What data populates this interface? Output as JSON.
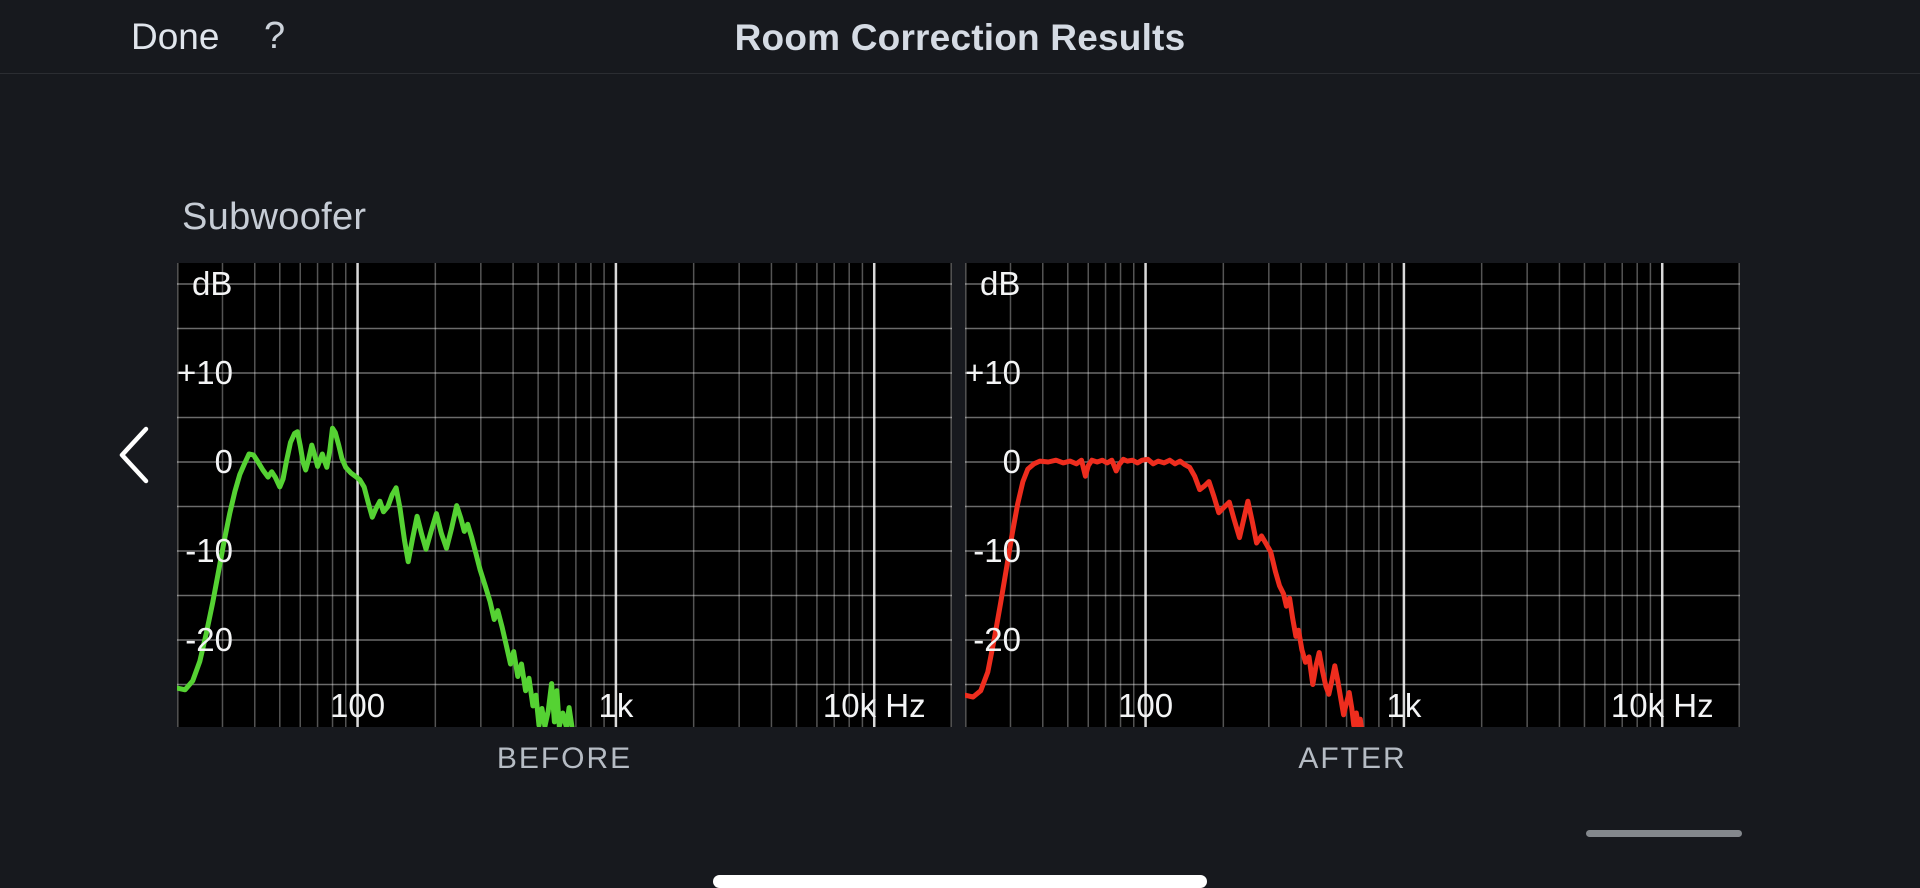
{
  "top_bar": {
    "done_label": "Done",
    "help_label": "?",
    "title": "Room Correction Results"
  },
  "section": {
    "speaker_label": "Subwoofer"
  },
  "colors": {
    "background": "#17191e",
    "chart_background": "#000000",
    "before_curve": "#55d233",
    "after_curve": "#ee2d1e",
    "grid_minor": "rgba(255,255,255,0.33)",
    "grid_major": "rgba(255,255,255,0.85)",
    "grid_horizontal": "rgba(255,255,255,0.42)"
  },
  "chart_data": [
    {
      "type": "line",
      "name": "Before room correction",
      "caption": "BEFORE",
      "color": "#55d233",
      "x_axis": {
        "unit": "Hz",
        "scale": "log",
        "min_hz": 20,
        "max_hz": 20000,
        "labels": [
          {
            "text": "100",
            "hz": 100
          },
          {
            "text": "1k",
            "hz": 1000
          },
          {
            "text": "10k Hz",
            "hz": 10000
          }
        ],
        "major_gridlines_hz": [
          100,
          1000,
          10000
        ],
        "minor_gridlines_hz": [
          30,
          40,
          50,
          60,
          70,
          80,
          90,
          200,
          300,
          400,
          500,
          600,
          700,
          800,
          900,
          2000,
          3000,
          4000,
          5000,
          6000,
          7000,
          8000,
          9000
        ]
      },
      "y_axis": {
        "unit": "dB",
        "min_db": -30,
        "max_db": 22.4,
        "labels": [
          {
            "text": "dB",
            "db": 20,
            "align": "left"
          },
          {
            "text": "+10",
            "db": 10
          },
          {
            "text": "0",
            "db": 0
          },
          {
            "text": "-10",
            "db": -10
          },
          {
            "text": "-20",
            "db": -20
          }
        ],
        "gridlines_db": [
          20,
          15,
          10,
          5,
          0,
          -5,
          -10,
          -15,
          -20,
          -25
        ]
      },
      "points_hz_db": [
        [
          20,
          -25.4
        ],
        [
          21.5,
          -25.6
        ],
        [
          23,
          -24.6
        ],
        [
          24.5,
          -22.4
        ],
        [
          26,
          -19.2
        ],
        [
          27.5,
          -15.8
        ],
        [
          29,
          -12.2
        ],
        [
          30.5,
          -8.8
        ],
        [
          32,
          -5.8
        ],
        [
          33.5,
          -3.3
        ],
        [
          35,
          -1.4
        ],
        [
          36.5,
          -0.2
        ],
        [
          38,
          0.9
        ],
        [
          39.5,
          0.8
        ],
        [
          41,
          0.1
        ],
        [
          43,
          -0.9
        ],
        [
          45,
          -1.7
        ],
        [
          46.5,
          -1.1
        ],
        [
          48,
          -1.7
        ],
        [
          50,
          -2.8
        ],
        [
          51.5,
          -1.9
        ],
        [
          53,
          0
        ],
        [
          55,
          2.2
        ],
        [
          57,
          3.2
        ],
        [
          58.5,
          3.4
        ],
        [
          60,
          1.8
        ],
        [
          61.5,
          0
        ],
        [
          63,
          -0.9
        ],
        [
          64.5,
          0.2
        ],
        [
          66.5,
          1.9
        ],
        [
          68.5,
          0.6
        ],
        [
          70,
          -0.5
        ],
        [
          71.5,
          0.2
        ],
        [
          73,
          0.9
        ],
        [
          74.5,
          0.1
        ],
        [
          76,
          -0.6
        ],
        [
          78,
          1.2
        ],
        [
          80,
          3.8
        ],
        [
          82,
          3.3
        ],
        [
          84.5,
          1.9
        ],
        [
          87,
          0.4
        ],
        [
          90,
          -0.6
        ],
        [
          94,
          -1.2
        ],
        [
          98,
          -1.6
        ],
        [
          102,
          -2
        ],
        [
          106,
          -2.8
        ],
        [
          110,
          -4.6
        ],
        [
          114,
          -6.2
        ],
        [
          118,
          -5.2
        ],
        [
          122,
          -4.4
        ],
        [
          126,
          -5.6
        ],
        [
          131,
          -5
        ],
        [
          136,
          -3.7
        ],
        [
          141,
          -2.9
        ],
        [
          146,
          -5.2
        ],
        [
          152,
          -8.8
        ],
        [
          157,
          -11.2
        ],
        [
          163,
          -8.7
        ],
        [
          170,
          -6.1
        ],
        [
          177,
          -8.1
        ],
        [
          184,
          -9.8
        ],
        [
          193,
          -7.7
        ],
        [
          202,
          -5.8
        ],
        [
          211,
          -8
        ],
        [
          221,
          -9.7
        ],
        [
          231,
          -7.5
        ],
        [
          242,
          -4.9
        ],
        [
          251,
          -6.3
        ],
        [
          259,
          -7.8
        ],
        [
          267,
          -7
        ],
        [
          276,
          -8.4
        ],
        [
          286,
          -10.1
        ],
        [
          298,
          -12.1
        ],
        [
          312,
          -13.9
        ],
        [
          326,
          -15.7
        ],
        [
          338,
          -17.7
        ],
        [
          349,
          -16.7
        ],
        [
          363,
          -18.6
        ],
        [
          377,
          -20.7
        ],
        [
          391,
          -22.7
        ],
        [
          402,
          -21.3
        ],
        [
          417,
          -24.1
        ],
        [
          431,
          -22.7
        ],
        [
          447,
          -25.7
        ],
        [
          461,
          -24.3
        ],
        [
          477,
          -27.4
        ],
        [
          490,
          -26.2
        ],
        [
          504,
          -29.6
        ],
        [
          517,
          -27.7
        ],
        [
          531,
          -29.7
        ],
        [
          547,
          -28
        ],
        [
          564,
          -24.9
        ],
        [
          578,
          -29.2
        ],
        [
          591,
          -25.7
        ],
        [
          604,
          -29.7
        ],
        [
          623,
          -28.2
        ],
        [
          643,
          -29.8
        ],
        [
          659,
          -27.6
        ],
        [
          676,
          -29.8
        ],
        [
          688,
          -30.6
        ]
      ]
    },
    {
      "type": "line",
      "name": "After room correction",
      "caption": "AFTER",
      "color": "#ee2d1e",
      "x_axis": {
        "unit": "Hz",
        "scale": "log",
        "min_hz": 20,
        "max_hz": 20000,
        "labels": [
          {
            "text": "100",
            "hz": 100
          },
          {
            "text": "1k",
            "hz": 1000
          },
          {
            "text": "10k Hz",
            "hz": 10000
          }
        ],
        "major_gridlines_hz": [
          100,
          1000,
          10000
        ],
        "minor_gridlines_hz": [
          30,
          40,
          50,
          60,
          70,
          80,
          90,
          200,
          300,
          400,
          500,
          600,
          700,
          800,
          900,
          2000,
          3000,
          4000,
          5000,
          6000,
          7000,
          8000,
          9000
        ]
      },
      "y_axis": {
        "unit": "dB",
        "min_db": -30,
        "max_db": 22.4,
        "labels": [
          {
            "text": "dB",
            "db": 20,
            "align": "left"
          },
          {
            "text": "+10",
            "db": 10
          },
          {
            "text": "0",
            "db": 0
          },
          {
            "text": "-10",
            "db": -10
          },
          {
            "text": "-20",
            "db": -20
          }
        ],
        "gridlines_db": [
          20,
          15,
          10,
          5,
          0,
          -5,
          -10,
          -15,
          -20,
          -25
        ]
      },
      "points_hz_db": [
        [
          20,
          -26.2
        ],
        [
          21.5,
          -26.4
        ],
        [
          23,
          -25.7
        ],
        [
          24.5,
          -23.6
        ],
        [
          26,
          -19.8
        ],
        [
          27.5,
          -15.8
        ],
        [
          29,
          -11.8
        ],
        [
          30.5,
          -8
        ],
        [
          32,
          -4.7
        ],
        [
          33.5,
          -2.2
        ],
        [
          35,
          -0.8
        ],
        [
          37,
          -0.2
        ],
        [
          39,
          0.1
        ],
        [
          42,
          0
        ],
        [
          45,
          0.2
        ],
        [
          48,
          -0.1
        ],
        [
          51,
          0.1
        ],
        [
          54,
          -0.2
        ],
        [
          56.5,
          0.2
        ],
        [
          58.5,
          -1.6
        ],
        [
          60,
          -0.4
        ],
        [
          62,
          0.2
        ],
        [
          65,
          0
        ],
        [
          68,
          0.2
        ],
        [
          71,
          -0.1
        ],
        [
          74,
          0.2
        ],
        [
          77,
          -1
        ],
        [
          79,
          -0.3
        ],
        [
          82,
          0.3
        ],
        [
          85,
          0.1
        ],
        [
          89,
          0.2
        ],
        [
          93,
          -0.1
        ],
        [
          97,
          0.2
        ],
        [
          102,
          0.3
        ],
        [
          107,
          -0.2
        ],
        [
          112,
          0.1
        ],
        [
          118,
          -0.1
        ],
        [
          124,
          0.2
        ],
        [
          130,
          -0.2
        ],
        [
          136,
          0.1
        ],
        [
          142,
          -0.3
        ],
        [
          148,
          -0.6
        ],
        [
          155,
          -1.6
        ],
        [
          162,
          -3.1
        ],
        [
          169,
          -2.7
        ],
        [
          176,
          -2.2
        ],
        [
          184,
          -3.9
        ],
        [
          192,
          -5.7
        ],
        [
          201,
          -5.1
        ],
        [
          211,
          -4.5
        ],
        [
          220,
          -6.4
        ],
        [
          231,
          -8.5
        ],
        [
          240,
          -6.4
        ],
        [
          249,
          -4.4
        ],
        [
          259,
          -6.7
        ],
        [
          269,
          -9.1
        ],
        [
          281,
          -8.3
        ],
        [
          293,
          -9.2
        ],
        [
          305,
          -10.1
        ],
        [
          318,
          -12.3
        ],
        [
          330,
          -13.9
        ],
        [
          342,
          -14.8
        ],
        [
          351,
          -16.2
        ],
        [
          361,
          -15.3
        ],
        [
          371,
          -17.6
        ],
        [
          382,
          -19.6
        ],
        [
          391,
          -18.9
        ],
        [
          403,
          -21.1
        ],
        [
          416,
          -22.5
        ],
        [
          429,
          -21.9
        ],
        [
          444,
          -25
        ],
        [
          457,
          -22.9
        ],
        [
          470,
          -21.4
        ],
        [
          485,
          -23.6
        ],
        [
          499,
          -25.2
        ],
        [
          512,
          -26.1
        ],
        [
          526,
          -24.6
        ],
        [
          540,
          -22.9
        ],
        [
          555,
          -24.6
        ],
        [
          570,
          -26.6
        ],
        [
          584,
          -28.4
        ],
        [
          599,
          -27.1
        ],
        [
          614,
          -25.9
        ],
        [
          628,
          -27.6
        ],
        [
          640,
          -29.6
        ],
        [
          654,
          -28.2
        ],
        [
          667,
          -29.7
        ],
        [
          678,
          -28.9
        ],
        [
          690,
          -30.6
        ]
      ]
    }
  ]
}
